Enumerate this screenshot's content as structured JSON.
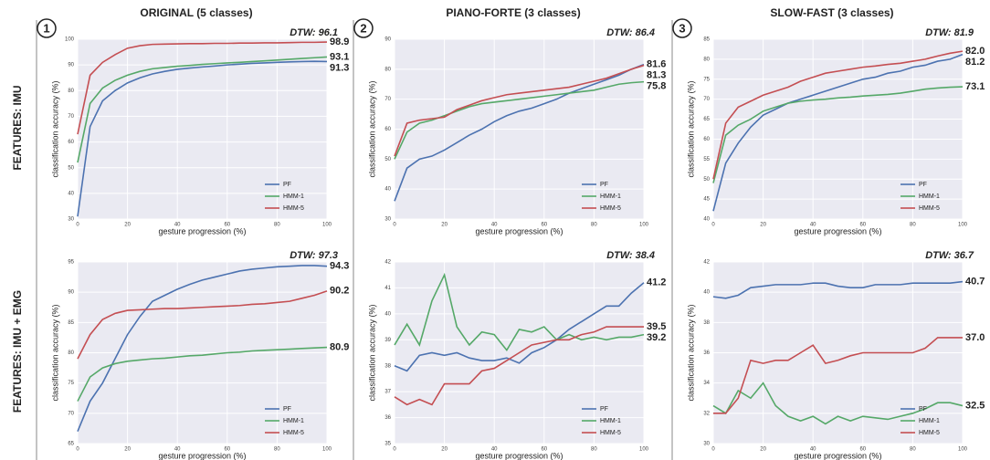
{
  "row_labels": [
    "FEATURES: IMU",
    "FEATURES: IMU + EMG"
  ],
  "chart_data": [
    {
      "type": "line",
      "title": "ORIGINAL (5 classes)",
      "panel": "1",
      "annotation": "DTW: 96.1",
      "xlabel": "gesture progression (%)",
      "ylabel": "classification accuracy (%)",
      "x": [
        0,
        5,
        10,
        15,
        20,
        25,
        30,
        35,
        40,
        45,
        50,
        55,
        60,
        65,
        70,
        75,
        80,
        85,
        90,
        95,
        100
      ],
      "xlim": [
        0,
        100
      ],
      "xticks": [
        0,
        20,
        40,
        60,
        80,
        100
      ],
      "ylim": [
        30,
        100
      ],
      "yticks": [
        30,
        40,
        50,
        60,
        70,
        80,
        90,
        100
      ],
      "grid": true,
      "legend": "lower right",
      "series": [
        {
          "name": "PF",
          "color": "#4c72b0",
          "end_label": "91.3",
          "values": [
            31,
            66,
            76,
            80,
            83,
            85,
            86.5,
            87.5,
            88.3,
            88.8,
            89.2,
            89.6,
            90,
            90.3,
            90.6,
            90.8,
            91,
            91.2,
            91.3,
            91.4,
            91.3
          ]
        },
        {
          "name": "HMM-1",
          "color": "#55a868",
          "end_label": "93.1",
          "values": [
            52,
            75,
            81,
            84,
            86,
            87.5,
            88.5,
            89,
            89.5,
            89.8,
            90.2,
            90.5,
            90.8,
            91,
            91.3,
            91.6,
            91.9,
            92.2,
            92.5,
            92.8,
            93.1
          ]
        },
        {
          "name": "HMM-5",
          "color": "#c44e52",
          "end_label": "98.9",
          "values": [
            63,
            86,
            91,
            94,
            96.5,
            97.5,
            98,
            98.1,
            98.2,
            98.3,
            98.3,
            98.4,
            98.4,
            98.5,
            98.5,
            98.6,
            98.6,
            98.7,
            98.8,
            98.8,
            98.9
          ]
        }
      ]
    },
    {
      "type": "line",
      "title": "PIANO-FORTE (3 classes)",
      "panel": "2",
      "annotation": "DTW: 86.4",
      "xlabel": "gesture progression (%)",
      "ylabel": "classification accuracy (%)",
      "x": [
        0,
        5,
        10,
        15,
        20,
        25,
        30,
        35,
        40,
        45,
        50,
        55,
        60,
        65,
        70,
        75,
        80,
        85,
        90,
        95,
        100
      ],
      "xlim": [
        0,
        100
      ],
      "xticks": [
        0,
        20,
        40,
        60,
        80,
        100
      ],
      "ylim": [
        30,
        90
      ],
      "yticks": [
        30,
        40,
        50,
        60,
        70,
        80,
        90
      ],
      "grid": true,
      "legend": "lower right",
      "series": [
        {
          "name": "PF",
          "color": "#4c72b0",
          "end_label": "81.6",
          "values": [
            36,
            47,
            50,
            51,
            53,
            55.5,
            58,
            60,
            62.5,
            64.5,
            66,
            67,
            68.5,
            70,
            72,
            73.5,
            75,
            76.5,
            78,
            80,
            81.6
          ]
        },
        {
          "name": "HMM-1",
          "color": "#55a868",
          "end_label": "75.8",
          "values": [
            50,
            59,
            62,
            63,
            64.5,
            66,
            67.5,
            68.5,
            69,
            69.5,
            70,
            70.5,
            71,
            71.5,
            72,
            72.5,
            73,
            74,
            75,
            75.5,
            75.8
          ]
        },
        {
          "name": "HMM-5",
          "color": "#c44e52",
          "end_label": "81.3",
          "values": [
            51,
            62,
            63,
            63.5,
            64,
            66.5,
            68,
            69.5,
            70.5,
            71.5,
            72,
            72.5,
            73,
            73.5,
            74,
            75,
            76,
            77,
            78.5,
            80,
            81.3
          ]
        }
      ]
    },
    {
      "type": "line",
      "title": "SLOW-FAST (3 classes)",
      "panel": "3",
      "annotation": "DTW: 81.9",
      "xlabel": "gesture progression (%)",
      "ylabel": "classification accuracy (%)",
      "x": [
        0,
        5,
        10,
        15,
        20,
        25,
        30,
        35,
        40,
        45,
        50,
        55,
        60,
        65,
        70,
        75,
        80,
        85,
        90,
        95,
        100
      ],
      "xlim": [
        0,
        100
      ],
      "xticks": [
        0,
        20,
        40,
        60,
        80,
        100
      ],
      "ylim": [
        40,
        85
      ],
      "yticks": [
        40,
        45,
        50,
        55,
        60,
        65,
        70,
        75,
        80,
        85
      ],
      "grid": true,
      "legend": "lower right",
      "series": [
        {
          "name": "PF",
          "color": "#4c72b0",
          "end_label": "81.2",
          "values": [
            42,
            54,
            59,
            63,
            66,
            67.5,
            69,
            70,
            71,
            72,
            73,
            74,
            75,
            75.5,
            76.5,
            77,
            78,
            78.5,
            79.5,
            80,
            81.2
          ]
        },
        {
          "name": "HMM-1",
          "color": "#55a868",
          "end_label": "73.1",
          "values": [
            49,
            61,
            63.5,
            65,
            67,
            68,
            69,
            69.5,
            69.8,
            70,
            70.3,
            70.5,
            70.8,
            71,
            71.2,
            71.5,
            72,
            72.5,
            72.8,
            73,
            73.1
          ]
        },
        {
          "name": "HMM-5",
          "color": "#c44e52",
          "end_label": "82.0",
          "values": [
            50,
            64,
            68,
            69.5,
            71,
            72,
            73,
            74.5,
            75.5,
            76.5,
            77,
            77.5,
            78,
            78.3,
            78.7,
            79,
            79.5,
            80,
            80.8,
            81.5,
            82
          ]
        }
      ]
    },
    {
      "type": "line",
      "annotation": "DTW: 97.3",
      "xlabel": "gesture progression (%)",
      "ylabel": "classification accuracy (%)",
      "x": [
        0,
        5,
        10,
        15,
        20,
        25,
        30,
        35,
        40,
        45,
        50,
        55,
        60,
        65,
        70,
        75,
        80,
        85,
        90,
        95,
        100
      ],
      "xlim": [
        0,
        100
      ],
      "xticks": [
        0,
        20,
        40,
        60,
        80,
        100
      ],
      "ylim": [
        65,
        95
      ],
      "yticks": [
        65,
        70,
        75,
        80,
        85,
        90,
        95
      ],
      "grid": true,
      "legend": "lower right",
      "series": [
        {
          "name": "PF",
          "color": "#4c72b0",
          "end_label": "94.3",
          "values": [
            67,
            72,
            75,
            79,
            83,
            86,
            88.5,
            89.5,
            90.5,
            91.3,
            92,
            92.5,
            93,
            93.5,
            93.8,
            94,
            94.2,
            94.3,
            94.4,
            94.4,
            94.3
          ]
        },
        {
          "name": "HMM-1",
          "color": "#55a868",
          "end_label": "80.9",
          "values": [
            72,
            76,
            77.5,
            78.2,
            78.6,
            78.8,
            79,
            79.1,
            79.3,
            79.5,
            79.6,
            79.8,
            80,
            80.1,
            80.3,
            80.4,
            80.5,
            80.6,
            80.7,
            80.8,
            80.9
          ]
        },
        {
          "name": "HMM-5",
          "color": "#c44e52",
          "end_label": "90.2",
          "values": [
            79,
            83,
            85.5,
            86.5,
            87,
            87.1,
            87.2,
            87.3,
            87.3,
            87.4,
            87.5,
            87.6,
            87.7,
            87.8,
            88,
            88.1,
            88.3,
            88.5,
            89,
            89.5,
            90.2
          ]
        }
      ]
    },
    {
      "type": "line",
      "annotation": "DTW: 38.4",
      "xlabel": "gesture progression (%)",
      "ylabel": "classification accuracy (%)",
      "x": [
        0,
        5,
        10,
        15,
        20,
        25,
        30,
        35,
        40,
        45,
        50,
        55,
        60,
        65,
        70,
        75,
        80,
        85,
        90,
        95,
        100
      ],
      "xlim": [
        0,
        100
      ],
      "xticks": [
        0,
        20,
        40,
        60,
        80,
        100
      ],
      "ylim": [
        35,
        42
      ],
      "yticks": [
        35,
        36,
        37,
        38,
        39,
        40,
        41,
        42
      ],
      "grid": true,
      "legend": "lower right",
      "series": [
        {
          "name": "PF",
          "color": "#4c72b0",
          "end_label": "41.2",
          "values": [
            38,
            37.8,
            38.4,
            38.5,
            38.4,
            38.5,
            38.3,
            38.2,
            38.2,
            38.3,
            38.1,
            38.5,
            38.7,
            39,
            39.4,
            39.7,
            40,
            40.3,
            40.3,
            40.8,
            41.2
          ]
        },
        {
          "name": "HMM-1",
          "color": "#55a868",
          "end_label": "39.2",
          "values": [
            38.8,
            39.6,
            38.8,
            40.5,
            41.5,
            39.5,
            38.8,
            39.3,
            39.2,
            38.6,
            39.4,
            39.3,
            39.5,
            39,
            39.2,
            39,
            39.1,
            39,
            39.1,
            39.1,
            39.2
          ]
        },
        {
          "name": "HMM-5",
          "color": "#c44e52",
          "end_label": "39.5",
          "values": [
            36.8,
            36.5,
            36.7,
            36.5,
            37.3,
            37.3,
            37.3,
            37.8,
            37.9,
            38.2,
            38.5,
            38.8,
            38.9,
            39,
            39,
            39.2,
            39.3,
            39.5,
            39.5,
            39.5,
            39.5
          ]
        }
      ]
    },
    {
      "type": "line",
      "annotation": "DTW: 36.7",
      "xlabel": "gesture progression (%)",
      "ylabel": "classification accuracy (%)",
      "x": [
        0,
        5,
        10,
        15,
        20,
        25,
        30,
        35,
        40,
        45,
        50,
        55,
        60,
        65,
        70,
        75,
        80,
        85,
        90,
        95,
        100
      ],
      "xlim": [
        0,
        100
      ],
      "xticks": [
        0,
        20,
        40,
        60,
        80,
        100
      ],
      "ylim": [
        30,
        42
      ],
      "yticks": [
        30,
        32,
        34,
        36,
        38,
        40,
        42
      ],
      "grid": true,
      "legend": "lower right",
      "series": [
        {
          "name": "PF",
          "color": "#4c72b0",
          "end_label": "40.7",
          "values": [
            39.7,
            39.6,
            39.8,
            40.3,
            40.4,
            40.5,
            40.5,
            40.5,
            40.6,
            40.6,
            40.4,
            40.3,
            40.3,
            40.5,
            40.5,
            40.5,
            40.6,
            40.6,
            40.6,
            40.6,
            40.7
          ]
        },
        {
          "name": "HMM-1",
          "color": "#55a868",
          "end_label": "32.5",
          "values": [
            32.5,
            32,
            33.5,
            33,
            34,
            32.5,
            31.8,
            31.5,
            31.8,
            31.3,
            31.8,
            31.5,
            31.8,
            31.7,
            31.6,
            31.8,
            32,
            32.3,
            32.7,
            32.7,
            32.5
          ]
        },
        {
          "name": "HMM-5",
          "color": "#c44e52",
          "end_label": "37.0",
          "values": [
            32,
            32,
            33,
            35.5,
            35.3,
            35.5,
            35.5,
            36,
            36.5,
            35.3,
            35.5,
            35.8,
            36,
            36,
            36,
            36,
            36,
            36.3,
            37,
            37,
            37
          ]
        }
      ]
    }
  ]
}
